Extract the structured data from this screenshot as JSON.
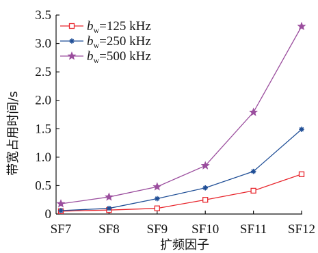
{
  "chart_data": {
    "type": "line",
    "title": "",
    "xlabel": "扩频因子",
    "ylabel": "带宽占用时间/s",
    "categories": [
      "SF7",
      "SF8",
      "SF9",
      "SF10",
      "SF11",
      "SF12"
    ],
    "y_ticks": [
      "0",
      "0.5",
      "1.0",
      "1.5",
      "2.0",
      "2.5",
      "3.0",
      "3.5"
    ],
    "ylim": [
      0,
      3.5
    ],
    "grid": false,
    "legend_position": "top-left",
    "series": [
      {
        "name_main": "b",
        "name_sub": "w",
        "name_rest": "=125 kHz",
        "color": "#e8262d",
        "marker": "square",
        "values": [
          0.05,
          0.07,
          0.1,
          0.25,
          0.41,
          0.7
        ]
      },
      {
        "name_main": "b",
        "name_sub": "w",
        "name_rest": "=250 kHz",
        "color": "#1f4e96",
        "marker": "asterisk",
        "values": [
          0.06,
          0.1,
          0.27,
          0.46,
          0.75,
          1.49
        ]
      },
      {
        "name_main": "b",
        "name_sub": "w",
        "name_rest": "=500 kHz",
        "color": "#9b4e9e",
        "marker": "star",
        "values": [
          0.18,
          0.3,
          0.48,
          0.85,
          1.79,
          3.3
        ]
      }
    ]
  }
}
